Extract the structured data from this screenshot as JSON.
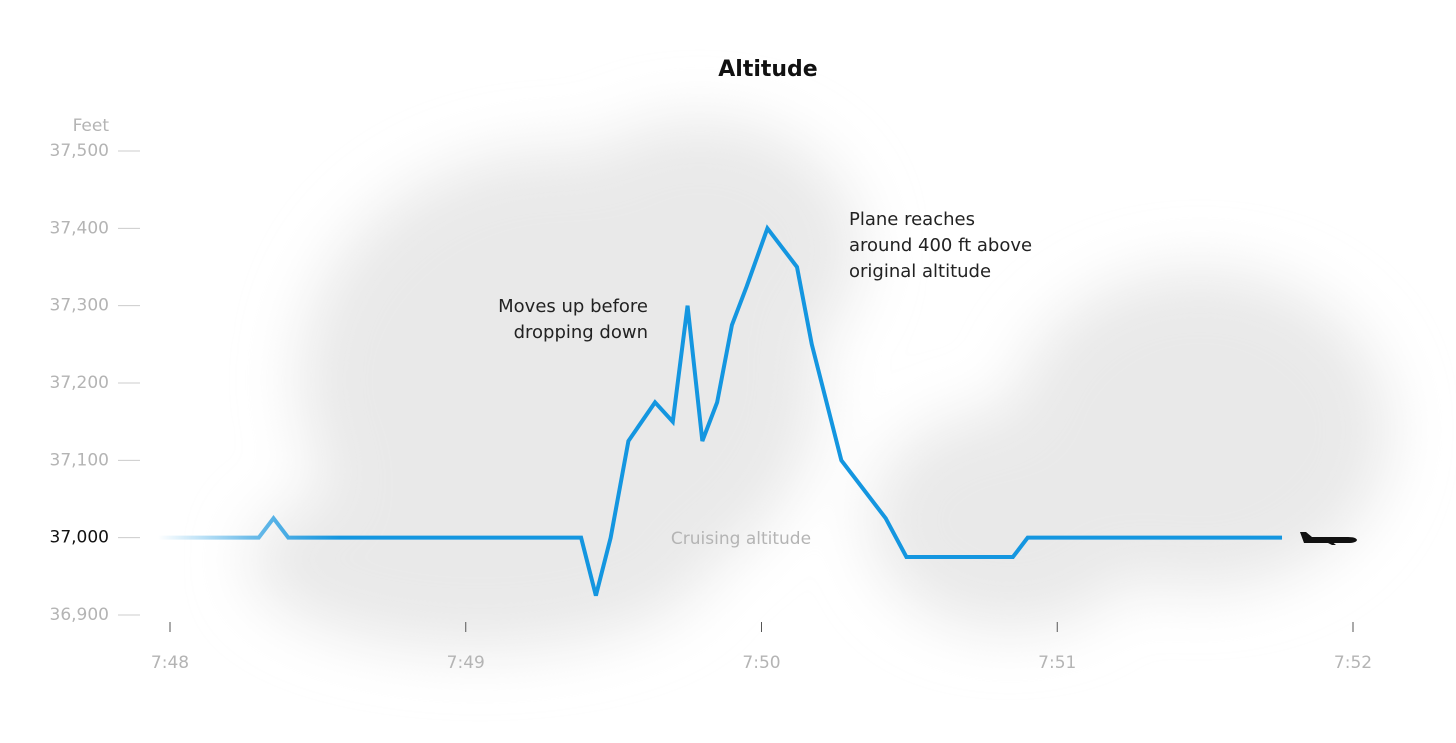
{
  "chart_data": {
    "type": "line",
    "title": "Altitude",
    "y_label": "Feet",
    "x": [
      467.96,
      468.3,
      468.35,
      468.4,
      469.39,
      469.44,
      469.49,
      469.55,
      469.64,
      469.7,
      469.75,
      469.8,
      469.85,
      469.9,
      469.95,
      470.02,
      470.12,
      470.17,
      470.27,
      470.42,
      470.49,
      470.85,
      470.9,
      471.76
    ],
    "series": [
      {
        "name": "Altitude",
        "color": "#1496e0",
        "values": [
          37000,
          37000,
          37025,
          37000,
          37000,
          36925,
          37000,
          37125,
          37175,
          37150,
          37300,
          37125,
          37175,
          37275,
          37325,
          37400,
          37350,
          37250,
          37100,
          37025,
          36975,
          36975,
          37000,
          37000
        ]
      }
    ],
    "xlim": [
      467.95,
      472.05
    ],
    "xticks": [
      {
        "value": 468,
        "label": "7:48"
      },
      {
        "value": 469,
        "label": "7:49"
      },
      {
        "value": 470,
        "label": "7:50"
      },
      {
        "value": 471,
        "label": "7:51"
      },
      {
        "value": 472,
        "label": "7:52"
      }
    ],
    "ylim": [
      36900,
      37500
    ],
    "yticks": [
      {
        "value": 36900,
        "label": "36,900"
      },
      {
        "value": 37000,
        "label": "37,000"
      },
      {
        "value": 37100,
        "label": "37,100"
      },
      {
        "value": 37200,
        "label": "37,200"
      },
      {
        "value": 37300,
        "label": "37,300"
      },
      {
        "value": 37400,
        "label": "37,400"
      },
      {
        "value": 37500,
        "label": "37,500"
      }
    ],
    "annotations": [
      {
        "lines": [
          "Moves up before",
          "dropping down"
        ]
      },
      {
        "lines": [
          "Plane reaches",
          "around 400 ft above",
          "original altitude"
        ]
      },
      {
        "lines": [
          "Cruising altitude"
        ]
      }
    ]
  }
}
